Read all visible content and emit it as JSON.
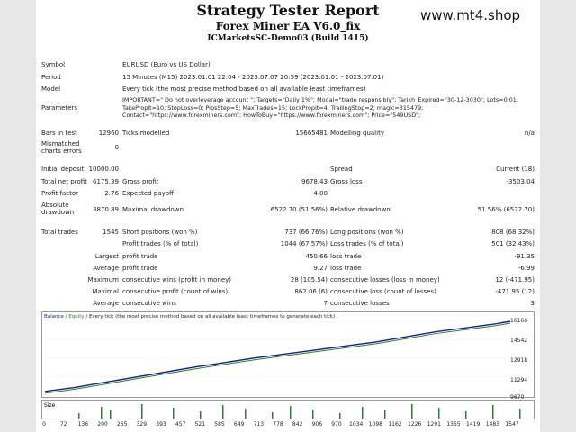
{
  "header": {
    "title": "Strategy Tester Report",
    "ea_name": "Forex Miner EA V6.0_fix",
    "account": "ICMarketsSC-Demo03 (Build 1415)",
    "site": "www.mt4.shop"
  },
  "info": {
    "symbol_label": "Symbol",
    "symbol_value": "EURUSD (Euro vs US Dollar)",
    "period_label": "Period",
    "period_value": "15 Minutes (M15) 2023.01.01 22:04 - 2023.07.07 20:59 (2023.01.01 - 2023.07.01)",
    "model_label": "Model",
    "model_value": "Every tick (the most precise method based on all available least timeframes)",
    "params_label": "Parameters",
    "params_value": "IMPORTANT=\" Do not overleverage account \"; Targets=\"Daily 1%\"; Modal=\"trade responsibly\"; Tarikh_Expired=\"30-12-3030\"; Lots=0.01; TakePropit=10; StopLoss=0; PipsStep=5; MaxTrades=15; LockPropit=4; TrailingStop=2; magic=315479; Contact=\"https://www.forexminers.com\"; HowToBuy=\"https://www.forexminers.com\"; Price=\"549USD\";"
  },
  "stats": {
    "bars_label": "Bars in test",
    "bars_value": "12960",
    "ticks_label": "Ticks modelled",
    "ticks_value": "15665481",
    "mq_label": "Modelling quality",
    "mq_value": "n/a",
    "mismatch_label": "Mismatched charts errors",
    "mismatch_value": "0",
    "deposit_label": "Initial deposit",
    "deposit_value": "10000.00",
    "spread_label": "Spread",
    "spread_value": "Current (18)",
    "tnp_label": "Total net profit",
    "tnp_value": "6175.39",
    "gp_label": "Gross profit",
    "gp_value": "9678.43",
    "gl_label": "Gross loss",
    "gl_value": "-3503.04",
    "pf_label": "Profit factor",
    "pf_value": "2.76",
    "ep_label": "Expected payoff",
    "ep_value": "4.00",
    "abs_dd_label": "Absolute drawdown",
    "abs_dd_value": "3870.89",
    "max_dd_label": "Maximal drawdown",
    "max_dd_value": "6522.70 (51.56%)",
    "rel_dd_label": "Relative drawdown",
    "rel_dd_value": "51.56% (6522.70)",
    "tt_label": "Total trades",
    "tt_value": "1545",
    "sp_label": "Short positions (won %)",
    "sp_value": "737 (66.76%)",
    "lp_label": "Long positions (won %)",
    "lp_value": "808 (68.32%)",
    "pt_label": "Profit trades (% of total)",
    "pt_value": "1044 (67.57%)",
    "lt_label": "Loss trades (% of total)",
    "lt_value": "501 (32.43%)",
    "largest_label": "Largest",
    "lpt_label": "profit trade",
    "lpt_value": "450.66",
    "llt_label": "loss trade",
    "llt_value": "-91.35",
    "average_label": "Average",
    "apt_label": "profit trade",
    "apt_value": "9.27",
    "alt_label": "loss trade",
    "alt_value": "-6.99",
    "maximum_label": "Maximum",
    "mcw_label": "consecutive wins (profit in money)",
    "mcw_value": "28 (105.54)",
    "mcl_label": "consecutive losses (loss in money)",
    "mcl_value": "12 (-471.95)",
    "maximal_label": "Maximal",
    "mcp_label": "consecutive profit (count of wins)",
    "mcp_value": "862.06 (6)",
    "mclc_label": "consecutive loss (count of losses)",
    "mclc_value": "-471.95 (12)",
    "average2_label": "Average",
    "acw_label": "consecutive wins",
    "acw_value": "7",
    "acl_label": "consecutive losses",
    "acl_value": "3"
  },
  "chart": {
    "legend_balance": "Balance",
    "legend_sep1": " / ",
    "legend_equity": "Equity",
    "legend_rest": " / Every tick (the most precise method based on all available least timeframes to generate each tick)",
    "size_label": "Size",
    "colors": {
      "balance": "#1a237e",
      "equity": "#2e7d32"
    },
    "y_ticks": [
      "16166",
      "14542",
      "12918",
      "11294",
      "9670"
    ],
    "x_ticks": [
      "0",
      "72",
      "136",
      "200",
      "265",
      "329",
      "393",
      "457",
      "521",
      "585",
      "649",
      "713",
      "778",
      "842",
      "906",
      "970",
      "1034",
      "1098",
      "1162",
      "1226",
      "1291",
      "1355",
      "1419",
      "1483",
      "1547"
    ]
  },
  "chart_data": {
    "type": "line",
    "series": [
      {
        "name": "Balance",
        "x": [
          0,
          100,
          200,
          300,
          400,
          500,
          600,
          700,
          800,
          900,
          1000,
          1100,
          1200,
          1300,
          1400,
          1500,
          1547
        ],
        "values": [
          10000,
          10350,
          10800,
          11250,
          11700,
          12150,
          12550,
          12950,
          13300,
          13650,
          14000,
          14350,
          14800,
          15250,
          15600,
          15950,
          16166
        ]
      }
    ],
    "y_ticks": [
      9670,
      11294,
      12918,
      14542,
      16166
    ],
    "xlim": [
      0,
      1547
    ]
  }
}
